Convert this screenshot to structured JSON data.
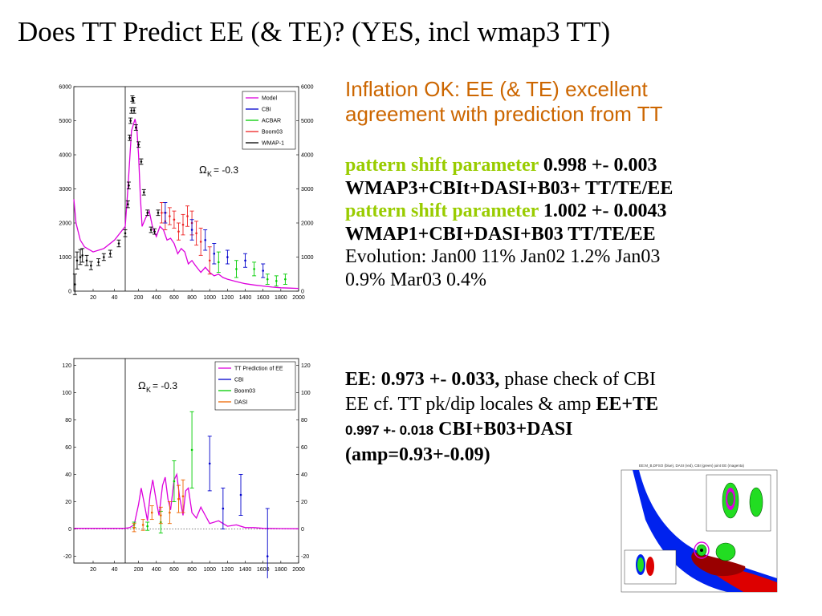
{
  "slide": {
    "title": "Does TT Predict EE (& TE)? (YES, incl wmap3 TT)",
    "subtitle_line1": "Inflation OK: EE (& TE) excellent",
    "subtitle_line2": "agreement with prediction from TT",
    "p1_label": "pattern shift parameter",
    "p1_value": " 0.998 +- 0.003",
    "p1_data": "WMAP3+CBIt+DASI+B03+ TT/TE/EE",
    "p2_label": "pattern shift parameter",
    "p2_value": " 1.002 +- 0.0043",
    "p2_data": "WMAP1+CBI+DASI+B03 TT/TE/EE",
    "evolution_line1": "Evolution: Jan00 11% Jan02 1.2% Jan03",
    "evolution_line2": "0.9%  Mar03 0.4%",
    "ee_label": "EE",
    "ee_colon": ": ",
    "ee_value": "0.973 +- 0.033,",
    "ee_text1": " phase check of CBI",
    "ee_text2": "EE cf. TT pk/dip locales & amp ",
    "ee_te_label": "EE+TE",
    "ee_te_value": "0.997 +- 0.018",
    "ee_te_data": " CBI+B03+DASI",
    "amp_text": "(amp=0.93+-0.09)",
    "inset_caption": "EE:M_B,DFSO (blue), DASI (red), CBI (green) joint EE (magenta)"
  },
  "chart_data": [
    {
      "type": "line",
      "panel": "TT",
      "xlabel": "",
      "ylabel": "",
      "x_axis": "split: linear 2-50, then linear 50-2000",
      "x_ticks": [
        20,
        40,
        200,
        400,
        600,
        800,
        1000,
        1200,
        1400,
        1600,
        1800,
        2000
      ],
      "y_ticks": [
        0,
        1000,
        2000,
        3000,
        4000,
        5000,
        6000
      ],
      "ylim": [
        0,
        6000
      ],
      "annotation": "ΩK= -0.3",
      "legend_position": "top-right",
      "legend": [
        {
          "name": "Model",
          "color": "#dd00dd"
        },
        {
          "name": "CBI",
          "color": "#0000cc"
        },
        {
          "name": "ACBAR",
          "color": "#00cc00"
        },
        {
          "name": "Boom03",
          "color": "#ee2222"
        },
        {
          "name": "WMAP-1",
          "color": "#000000"
        }
      ],
      "model": {
        "name": "Model",
        "x": [
          2,
          4,
          8,
          12,
          20,
          30,
          40,
          50,
          80,
          120,
          160,
          180,
          200,
          220,
          240,
          280,
          320,
          360,
          400,
          440,
          480,
          520,
          560,
          600,
          640,
          680,
          720,
          760,
          800,
          840,
          900,
          950,
          1000,
          1050,
          1100,
          1150,
          1200,
          1300,
          1400,
          1500,
          1600,
          1700,
          1800,
          1900,
          2000
        ],
        "y": [
          2700,
          2000,
          1500,
          1300,
          1150,
          1250,
          1500,
          1900,
          3000,
          4700,
          5050,
          4800,
          4000,
          2800,
          1900,
          2150,
          2350,
          1850,
          1600,
          1900,
          1800,
          1500,
          1550,
          1400,
          1100,
          1250,
          1150,
          800,
          900,
          750,
          550,
          700,
          550,
          450,
          500,
          400,
          350,
          280,
          220,
          180,
          150,
          120,
          100,
          90,
          80
        ]
      },
      "series": [
        {
          "name": "WMAP-1",
          "x": [
            3,
            5,
            8,
            10,
            14,
            18,
            25,
            30,
            36,
            44,
            50,
            80,
            90,
            100,
            110,
            120,
            130,
            140,
            150,
            170,
            200,
            230,
            260,
            300,
            340,
            380,
            420
          ],
          "y": [
            200,
            900,
            1000,
            1050,
            900,
            750,
            850,
            1000,
            1100,
            1400,
            1700,
            2550,
            3100,
            4500,
            5000,
            5300,
            5650,
            5600,
            5300,
            4800,
            4300,
            3800,
            2900,
            2300,
            1800,
            1750,
            2300
          ],
          "err": [
            300,
            250,
            220,
            200,
            150,
            120,
            100,
            100,
            100,
            100,
            100,
            100,
            100,
            80,
            80,
            80,
            80,
            80,
            80,
            80,
            80,
            80,
            80,
            80,
            80,
            80,
            80
          ]
        },
        {
          "name": "Boom03",
          "x": [
            460,
            500,
            550,
            600,
            650,
            700,
            750,
            800,
            850,
            900,
            1000
          ],
          "y": [
            2300,
            2050,
            2200,
            2100,
            1750,
            1950,
            2200,
            2000,
            1700,
            1450,
            900
          ],
          "err": [
            300,
            250,
            250,
            250,
            250,
            300,
            300,
            350,
            350,
            400,
            400
          ]
        },
        {
          "name": "CBI",
          "x": [
            500,
            800,
            950,
            1050,
            1200,
            1400,
            1600
          ],
          "y": [
            2300,
            1800,
            1500,
            1100,
            1000,
            900,
            600
          ],
          "err": [
            300,
            300,
            300,
            300,
            200,
            200,
            200
          ]
        },
        {
          "name": "ACBAR",
          "x": [
            1100,
            1300,
            1500,
            1650,
            1750,
            1850
          ],
          "y": [
            850,
            650,
            650,
            350,
            300,
            350
          ],
          "err": [
            300,
            250,
            200,
            150,
            150,
            150
          ]
        }
      ]
    },
    {
      "type": "line",
      "panel": "EE",
      "xlabel": "",
      "ylabel": "",
      "x_axis": "split: linear 2-50, then linear 50-2000",
      "x_ticks": [
        20,
        40,
        200,
        400,
        600,
        800,
        1000,
        1200,
        1400,
        1600,
        1800,
        2000
      ],
      "y_ticks": [
        -20,
        0,
        20,
        40,
        60,
        80,
        100,
        120
      ],
      "ylim": [
        -25,
        125
      ],
      "annotation": "ΩK= -0.3",
      "legend_position": "top-right",
      "legend": [
        {
          "name": "TT Prediction of EE",
          "color": "#dd00dd"
        },
        {
          "name": "CBI",
          "color": "#0000cc"
        },
        {
          "name": "Boom03",
          "color": "#00cc00"
        },
        {
          "name": "DASI",
          "color": "#ee6600"
        }
      ],
      "model": {
        "name": "TT Prediction of EE",
        "x": [
          2,
          10,
          20,
          30,
          40,
          50,
          100,
          150,
          200,
          230,
          260,
          300,
          330,
          360,
          400,
          430,
          470,
          500,
          530,
          560,
          600,
          630,
          660,
          700,
          730,
          760,
          800,
          850,
          900,
          950,
          1000,
          1100,
          1200,
          1300,
          1400,
          1500,
          1600,
          1800,
          2000
        ],
        "y": [
          0.5,
          0.5,
          0.5,
          0.5,
          0.5,
          0.5,
          1,
          3,
          18,
          30,
          20,
          6,
          25,
          36,
          20,
          10,
          32,
          38,
          22,
          14,
          36,
          40,
          24,
          10,
          28,
          30,
          12,
          8,
          16,
          10,
          4,
          6,
          2,
          3,
          1,
          1,
          0.5,
          0.3,
          0.2
        ]
      },
      "series": [
        {
          "name": "CBI",
          "x": [
            1000,
            1150,
            1350,
            1650
          ],
          "y": [
            48,
            15,
            25,
            -20
          ],
          "err": [
            20,
            15,
            15,
            35
          ]
        },
        {
          "name": "Boom03",
          "x": [
            150,
            300,
            450,
            600,
            800
          ],
          "y": [
            3,
            2,
            5,
            35,
            58
          ],
          "err": [
            2,
            3,
            8,
            15,
            28
          ]
        },
        {
          "name": "DASI",
          "x": [
            150,
            250,
            350,
            450,
            550,
            650,
            700
          ],
          "y": [
            1,
            3,
            12,
            10,
            12,
            22,
            24
          ],
          "err": [
            3,
            4,
            5,
            6,
            8,
            10,
            12
          ]
        }
      ]
    }
  ],
  "axis_labels": {
    "top_y_left": [
      "0",
      "1000",
      "2000",
      "3000",
      "4000",
      "5000",
      "6000"
    ],
    "top_y_right": [
      "0",
      "1000",
      "2000",
      "3000",
      "4000",
      "5000",
      "6000"
    ],
    "bot_y_left": [
      "-20",
      "0",
      "20",
      "40",
      "60",
      "80",
      "100",
      "120"
    ],
    "bot_y_right": [
      "-20",
      "0",
      "20",
      "40",
      "60",
      "80",
      "100",
      "120"
    ],
    "x": [
      "20",
      "40",
      "200",
      "400",
      "600",
      "800",
      "1000",
      "1200",
      "1400",
      "1600",
      "1800",
      "2000"
    ],
    "annot_omega": "Ω",
    "annot_k": "K",
    "annot_val": "= -0.3"
  }
}
